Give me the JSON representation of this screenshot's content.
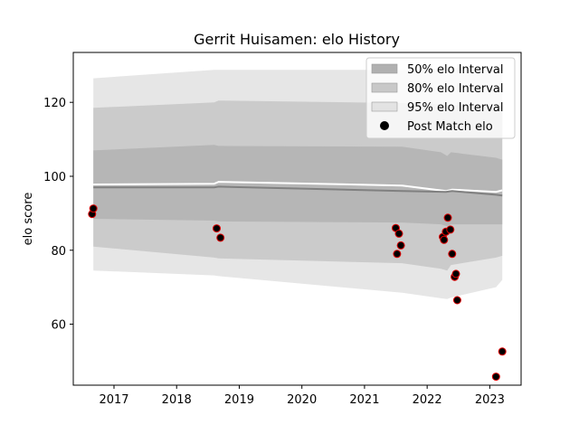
{
  "chart_data": {
    "type": "scatter",
    "title": "Gerrit Huisamen: elo History",
    "xlabel": "",
    "ylabel": "elo score",
    "xlim": [
      2016.35,
      2023.5
    ],
    "ylim": [
      43.5,
      133.5
    ],
    "x_ticks": [
      2017,
      2018,
      2019,
      2020,
      2021,
      2022,
      2023
    ],
    "y_ticks": [
      60,
      80,
      100,
      120
    ],
    "grid": false,
    "legend_position": "top-right",
    "legend": [
      {
        "label": "50% elo Interval",
        "kind": "band",
        "color": "#b0b0b0"
      },
      {
        "label": "80% elo Interval",
        "kind": "band",
        "color": "#c8c8c8"
      },
      {
        "label": "95% elo Interval",
        "kind": "band",
        "color": "#e3e3e3"
      },
      {
        "label": "Post Match elo",
        "kind": "marker",
        "color": "#000000"
      }
    ],
    "bands": {
      "x": [
        2016.67,
        2018.6,
        2018.67,
        2021.6,
        2022.22,
        2022.32,
        2022.38,
        2023.1,
        2023.2
      ],
      "band95": {
        "upper": [
          126.5,
          128.8,
          128.8,
          128.8,
          128.9,
          129.0,
          129.2,
          129.5,
          129.6
        ],
        "lower": [
          74.5,
          73.2,
          73.0,
          68.5,
          67.0,
          66.8,
          67.2,
          70.0,
          72.0
        ]
      },
      "band80": {
        "upper": [
          118.5,
          120.0,
          120.5,
          119.8,
          119.5,
          119.2,
          119.2,
          118.8,
          118.5
        ],
        "lower": [
          81.0,
          78.0,
          77.8,
          76.5,
          75.0,
          74.5,
          76.0,
          78.0,
          78.5
        ]
      },
      "band50": {
        "upper": [
          107.0,
          108.5,
          108.2,
          108.0,
          106.5,
          105.5,
          106.5,
          105.0,
          104.5
        ],
        "lower": [
          88.5,
          88.0,
          87.8,
          87.5,
          87.0,
          86.5,
          87.0,
          87.0,
          87.0
        ]
      }
    },
    "mean_line": {
      "x": [
        2016.67,
        2018.6,
        2018.67,
        2021.6,
        2022.3,
        2022.4,
        2023.1,
        2023.2
      ],
      "y": [
        97.0,
        97.0,
        97.2,
        96.0,
        95.8,
        96.0,
        95.0,
        94.8
      ]
    },
    "white_line": {
      "x": [
        2016.67,
        2018.6,
        2018.67,
        2021.6,
        2022.3,
        2022.4,
        2023.1,
        2023.2
      ],
      "y": [
        97.8,
        98.0,
        98.5,
        97.5,
        96.0,
        96.4,
        95.8,
        96.2
      ]
    },
    "points": [
      {
        "x": 2016.65,
        "y": 89.8
      },
      {
        "x": 2016.67,
        "y": 91.3
      },
      {
        "x": 2018.64,
        "y": 85.9
      },
      {
        "x": 2018.7,
        "y": 83.4
      },
      {
        "x": 2021.5,
        "y": 86.0
      },
      {
        "x": 2021.55,
        "y": 84.5
      },
      {
        "x": 2021.52,
        "y": 79.0
      },
      {
        "x": 2021.58,
        "y": 81.3
      },
      {
        "x": 2022.25,
        "y": 83.6
      },
      {
        "x": 2022.27,
        "y": 82.8
      },
      {
        "x": 2022.3,
        "y": 85.0
      },
      {
        "x": 2022.33,
        "y": 88.8
      },
      {
        "x": 2022.37,
        "y": 85.6
      },
      {
        "x": 2022.4,
        "y": 79.0
      },
      {
        "x": 2022.44,
        "y": 72.8
      },
      {
        "x": 2022.46,
        "y": 73.6
      },
      {
        "x": 2022.48,
        "y": 66.5
      },
      {
        "x": 2023.1,
        "y": 45.8
      },
      {
        "x": 2023.2,
        "y": 52.6
      }
    ]
  }
}
